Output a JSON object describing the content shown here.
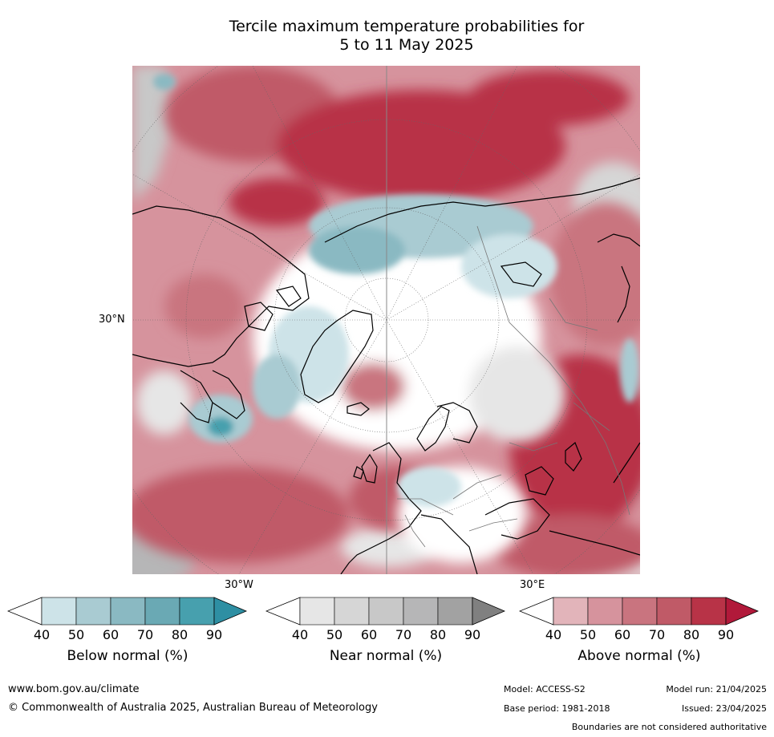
{
  "title": {
    "line1": "Tercile maximum temperature probabilities for",
    "line2": "5 to 11 May 2025"
  },
  "map": {
    "projection": "north-polar-stereographic",
    "labels": {
      "latitude": "30°N",
      "longitude_west": "30°W",
      "longitude_east": "30°E"
    }
  },
  "colorbars": [
    {
      "title": "Below normal (%)",
      "ticks": [
        "40",
        "50",
        "60",
        "70",
        "80",
        "90"
      ],
      "colors": [
        "#ffffff",
        "#cde3e8",
        "#a9cbd2",
        "#8ab9c2",
        "#6aa9b4",
        "#47a0ae",
        "#2e8fa3"
      ]
    },
    {
      "title": "Near normal (%)",
      "ticks": [
        "40",
        "50",
        "60",
        "70",
        "80",
        "90"
      ],
      "colors": [
        "#ffffff",
        "#e6e6e6",
        "#d6d6d6",
        "#c8c8c8",
        "#b6b6b7",
        "#a2a2a2",
        "#808080"
      ]
    },
    {
      "title": "Above normal (%)",
      "ticks": [
        "40",
        "50",
        "60",
        "70",
        "80",
        "90"
      ],
      "colors": [
        "#ffffff",
        "#e2b4ba",
        "#d6939d",
        "#c9747f",
        "#c05a67",
        "#b83347",
        "#b1193a"
      ]
    }
  ],
  "footer": {
    "website": "www.bom.gov.au/climate",
    "copyright": "© Commonwealth of Australia 2025, Australian Bureau of Meteorology",
    "model": "Model: ACCESS-S2",
    "base_period": "Base period: 1981-2018",
    "model_run": "Model run: 21/04/2025",
    "issued": "Issued: 23/04/2025",
    "disclaimer": "Boundaries are not considered authoritative"
  }
}
